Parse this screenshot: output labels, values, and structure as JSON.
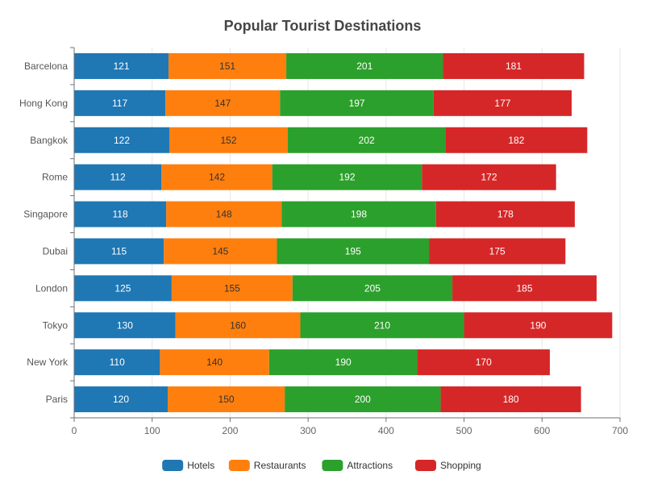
{
  "chart_data": {
    "type": "bar",
    "orientation": "horizontal",
    "stacked": true,
    "title": "Popular Tourist Destinations",
    "xlabel": "",
    "ylabel": "",
    "xlim": [
      0,
      700
    ],
    "x_ticks": [
      0,
      100,
      200,
      300,
      400,
      500,
      600,
      700
    ],
    "grid": "vertical",
    "legend_position": "bottom",
    "categories": [
      "Barcelona",
      "Hong Kong",
      "Bangkok",
      "Rome",
      "Singapore",
      "Dubai",
      "London",
      "Tokyo",
      "New York",
      "Paris"
    ],
    "series": [
      {
        "name": "Hotels",
        "color": "#1f77b4",
        "label_color": "#ffffff",
        "values": [
          121,
          117,
          122,
          112,
          118,
          115,
          125,
          130,
          110,
          120
        ]
      },
      {
        "name": "Restaurants",
        "color": "#ff7f0e",
        "label_color": "#333333",
        "values": [
          151,
          147,
          152,
          142,
          148,
          145,
          155,
          160,
          140,
          150
        ]
      },
      {
        "name": "Attractions",
        "color": "#2ca02c",
        "label_color": "#ffffff",
        "values": [
          201,
          197,
          202,
          192,
          198,
          195,
          205,
          210,
          190,
          200
        ]
      },
      {
        "name": "Shopping",
        "color": "#d62728",
        "label_color": "#ffffff",
        "values": [
          181,
          177,
          182,
          172,
          178,
          175,
          185,
          190,
          170,
          180
        ]
      }
    ]
  }
}
